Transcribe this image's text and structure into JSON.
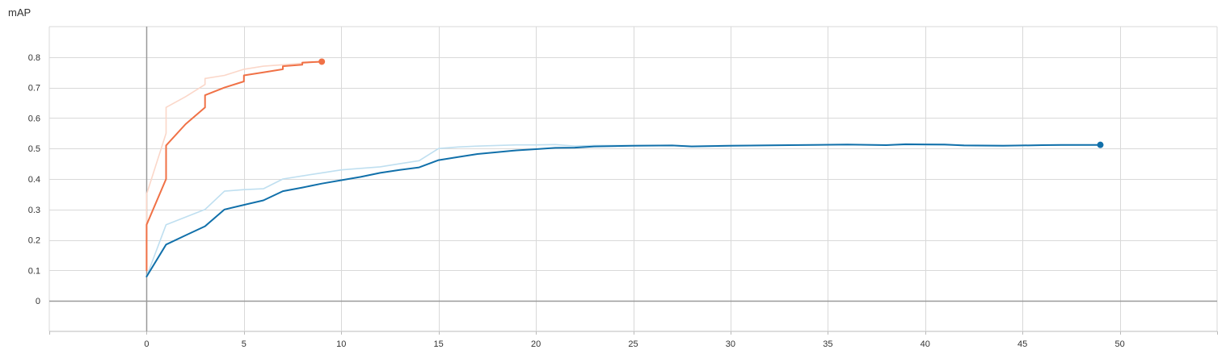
{
  "chart_data": {
    "type": "line",
    "ylabel": "mAP",
    "xlim": [
      -5,
      55
    ],
    "ylim": [
      -0.1,
      0.9
    ],
    "x_ticks": [
      0,
      5,
      10,
      15,
      20,
      25,
      30,
      35,
      40,
      45,
      50
    ],
    "x_tick_labels": [
      "0",
      "5",
      "10",
      "15",
      "20",
      "25",
      "30",
      "35",
      "40",
      "45",
      "50"
    ],
    "y_ticks": [
      0,
      0.1,
      0.2,
      0.3,
      0.4,
      0.5,
      0.6,
      0.7,
      0.8
    ],
    "y_tick_labels": [
      "0",
      "0.1",
      "0.2",
      "0.3",
      "0.4",
      "0.5",
      "0.6",
      "0.7",
      "0.8"
    ],
    "grid": true,
    "colors": {
      "orange": "#f07146",
      "orange_raw": "#fbd7c9",
      "blue": "#1170aa",
      "blue_raw": "#bfdff0",
      "grid": "#d9d9d9",
      "zero_axis": "#9a9a9a"
    },
    "series": [
      {
        "color_key": "orange_raw",
        "points": [
          [
            0,
            0.1
          ],
          [
            0,
            0.35
          ],
          [
            1,
            0.55
          ],
          [
            1,
            0.635
          ],
          [
            2,
            0.67
          ],
          [
            3,
            0.71
          ],
          [
            3,
            0.73
          ],
          [
            4,
            0.74
          ],
          [
            5,
            0.76
          ],
          [
            6,
            0.77
          ],
          [
            7,
            0.775
          ],
          [
            8,
            0.78
          ],
          [
            9,
            0.785
          ]
        ]
      },
      {
        "color_key": "orange",
        "points": [
          [
            0,
            0.1
          ],
          [
            0,
            0.25
          ],
          [
            1,
            0.4
          ],
          [
            1,
            0.51
          ],
          [
            2,
            0.58
          ],
          [
            3,
            0.635
          ],
          [
            3,
            0.675
          ],
          [
            4,
            0.7
          ],
          [
            5,
            0.72
          ],
          [
            5,
            0.74
          ],
          [
            6,
            0.75
          ],
          [
            7,
            0.76
          ],
          [
            7,
            0.77
          ],
          [
            8,
            0.775
          ],
          [
            8,
            0.782
          ],
          [
            9,
            0.785
          ]
        ],
        "marker_last": true
      },
      {
        "color_key": "blue_raw",
        "points": [
          [
            0,
            0.08
          ],
          [
            1,
            0.25
          ],
          [
            2,
            0.275
          ],
          [
            3,
            0.3
          ],
          [
            4,
            0.36
          ],
          [
            5,
            0.365
          ],
          [
            6,
            0.368
          ],
          [
            7,
            0.4
          ],
          [
            8,
            0.41
          ],
          [
            9,
            0.42
          ],
          [
            10,
            0.43
          ],
          [
            11,
            0.435
          ],
          [
            12,
            0.44
          ],
          [
            13,
            0.45
          ],
          [
            14,
            0.46
          ],
          [
            15,
            0.5
          ],
          [
            16,
            0.505
          ],
          [
            17,
            0.508
          ],
          [
            18,
            0.51
          ],
          [
            19,
            0.512
          ],
          [
            20,
            0.512
          ],
          [
            21,
            0.513
          ],
          [
            22,
            0.508
          ],
          [
            23,
            0.51
          ],
          [
            24,
            0.51
          ],
          [
            25,
            0.51
          ],
          [
            26,
            0.51
          ],
          [
            27,
            0.51
          ],
          [
            28,
            0.508
          ],
          [
            30,
            0.51
          ],
          [
            35,
            0.512
          ],
          [
            40,
            0.512
          ],
          [
            45,
            0.51
          ],
          [
            49,
            0.512
          ]
        ]
      },
      {
        "color_key": "blue",
        "points": [
          [
            0,
            0.08
          ],
          [
            1,
            0.185
          ],
          [
            2,
            0.215
          ],
          [
            3,
            0.245
          ],
          [
            4,
            0.3
          ],
          [
            5,
            0.315
          ],
          [
            6,
            0.33
          ],
          [
            7,
            0.36
          ],
          [
            8,
            0.372
          ],
          [
            9,
            0.385
          ],
          [
            10,
            0.396
          ],
          [
            11,
            0.407
          ],
          [
            12,
            0.42
          ],
          [
            13,
            0.43
          ],
          [
            14,
            0.438
          ],
          [
            15,
            0.462
          ],
          [
            16,
            0.472
          ],
          [
            17,
            0.482
          ],
          [
            18,
            0.488
          ],
          [
            19,
            0.494
          ],
          [
            20,
            0.498
          ],
          [
            21,
            0.502
          ],
          [
            22,
            0.503
          ],
          [
            23,
            0.507
          ],
          [
            25,
            0.509
          ],
          [
            27,
            0.51
          ],
          [
            28,
            0.507
          ],
          [
            30,
            0.509
          ],
          [
            33,
            0.511
          ],
          [
            36,
            0.513
          ],
          [
            38,
            0.511
          ],
          [
            39,
            0.514
          ],
          [
            41,
            0.513
          ],
          [
            42,
            0.51
          ],
          [
            44,
            0.509
          ],
          [
            46,
            0.511
          ],
          [
            47,
            0.512
          ],
          [
            49,
            0.512
          ]
        ],
        "marker_last": true
      }
    ]
  }
}
